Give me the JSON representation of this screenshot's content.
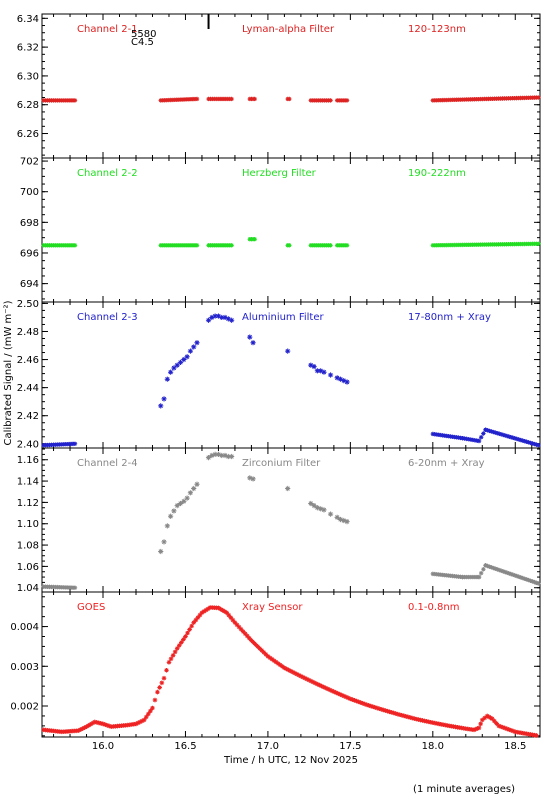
{
  "figure": {
    "xlabel": "Time / h UTC, 12 Nov 2025",
    "ylabel": "Calibrated Signal / (mW m⁻²)",
    "footnote": "(1 minute averages)",
    "flare_marker": {
      "time": 16.64,
      "class": "C4.5",
      "id": "5580"
    }
  },
  "chart_data": [
    {
      "type": "scatter",
      "channel": "Channel 2-1",
      "filter": "Lyman-alpha Filter",
      "band": "120-123nm",
      "color": "#dd2222",
      "ylim": [
        6.243,
        6.343
      ],
      "yticks": [
        6.26,
        6.28,
        6.3,
        6.32,
        6.34
      ],
      "ydecimals": 2,
      "xlim": [
        15.63,
        18.65
      ],
      "segments": [
        {
          "x0": 15.64,
          "x1": 15.83,
          "y0": 6.283,
          "y1": 6.283
        },
        {
          "x0": 16.35,
          "x1": 16.57,
          "y0": 6.283,
          "y1": 6.284
        },
        {
          "x0": 16.64,
          "x1": 16.78,
          "y0": 6.284,
          "y1": 6.284
        },
        {
          "x0": 16.89,
          "x1": 16.92,
          "y0": 6.284,
          "y1": 6.284
        },
        {
          "x0": 17.12,
          "x1": 17.13,
          "y0": 6.284,
          "y1": 6.284
        },
        {
          "x0": 17.26,
          "x1": 17.38,
          "y0": 6.283,
          "y1": 6.283
        },
        {
          "x0": 17.42,
          "x1": 17.48,
          "y0": 6.283,
          "y1": 6.283
        },
        {
          "x0": 18.0,
          "x1": 18.64,
          "y0": 6.283,
          "y1": 6.285
        }
      ],
      "points": []
    },
    {
      "type": "scatter",
      "channel": "Channel 2-2",
      "filter": "Herzberg Filter",
      "band": "190-222nm",
      "color": "#22dd22",
      "ylim": [
        692.8,
        702.2
      ],
      "yticks": [
        694,
        696,
        698,
        700,
        702
      ],
      "ydecimals": 0,
      "xlim": [
        15.63,
        18.65
      ],
      "segments": [
        {
          "x0": 15.64,
          "x1": 15.83,
          "y0": 696.5,
          "y1": 696.5
        },
        {
          "x0": 16.35,
          "x1": 16.57,
          "y0": 696.5,
          "y1": 696.5
        },
        {
          "x0": 16.64,
          "x1": 16.78,
          "y0": 696.5,
          "y1": 696.5
        },
        {
          "x0": 16.89,
          "x1": 16.92,
          "y0": 696.9,
          "y1": 696.9
        },
        {
          "x0": 17.12,
          "x1": 17.13,
          "y0": 696.5,
          "y1": 696.5
        },
        {
          "x0": 17.26,
          "x1": 17.38,
          "y0": 696.5,
          "y1": 696.5
        },
        {
          "x0": 17.42,
          "x1": 17.48,
          "y0": 696.5,
          "y1": 696.5
        },
        {
          "x0": 18.0,
          "x1": 18.64,
          "y0": 696.5,
          "y1": 696.6
        }
      ],
      "points": []
    },
    {
      "type": "scatter",
      "channel": "Channel 2-3",
      "filter": "Aluminium Filter",
      "band": "17-80nm + Xray",
      "color": "#2222cc",
      "ylim": [
        2.397,
        2.501
      ],
      "yticks": [
        2.4,
        2.42,
        2.44,
        2.46,
        2.48,
        2.5
      ],
      "ydecimals": 2,
      "xlim": [
        15.63,
        18.65
      ],
      "segments": [
        {
          "x0": 15.64,
          "x1": 15.83,
          "y0": 2.399,
          "y1": 2.4
        },
        {
          "x0": 18.0,
          "x1": 18.18,
          "y0": 2.407,
          "y1": 2.404
        },
        {
          "x0": 18.18,
          "x1": 18.28,
          "y0": 2.404,
          "y1": 2.402
        },
        {
          "x0": 18.28,
          "x1": 18.32,
          "y0": 2.402,
          "y1": 2.41
        },
        {
          "x0": 18.32,
          "x1": 18.64,
          "y0": 2.41,
          "y1": 2.399
        }
      ],
      "points": [
        [
          16.35,
          2.427
        ],
        [
          16.37,
          2.432
        ],
        [
          16.39,
          2.446
        ],
        [
          16.41,
          2.451
        ],
        [
          16.43,
          2.454
        ],
        [
          16.45,
          2.456
        ],
        [
          16.47,
          2.458
        ],
        [
          16.49,
          2.46
        ],
        [
          16.51,
          2.462
        ],
        [
          16.53,
          2.466
        ],
        [
          16.55,
          2.469
        ],
        [
          16.57,
          2.472
        ],
        [
          16.64,
          2.488
        ],
        [
          16.66,
          2.49
        ],
        [
          16.68,
          2.491
        ],
        [
          16.7,
          2.491
        ],
        [
          16.72,
          2.49
        ],
        [
          16.74,
          2.49
        ],
        [
          16.76,
          2.489
        ],
        [
          16.78,
          2.488
        ],
        [
          16.89,
          2.476
        ],
        [
          16.91,
          2.472
        ],
        [
          17.12,
          2.466
        ],
        [
          17.26,
          2.456
        ],
        [
          17.28,
          2.455
        ],
        [
          17.3,
          2.452
        ],
        [
          17.32,
          2.452
        ],
        [
          17.34,
          2.451
        ],
        [
          17.38,
          2.449
        ],
        [
          17.42,
          2.447
        ],
        [
          17.44,
          2.446
        ],
        [
          17.46,
          2.445
        ],
        [
          17.48,
          2.444
        ]
      ]
    },
    {
      "type": "scatter",
      "channel": "Channel 2-4",
      "filter": "Zirconium Filter",
      "band": "6-20nm + Xray",
      "color": "#888888",
      "ylim": [
        1.036,
        1.171
      ],
      "yticks": [
        1.04,
        1.06,
        1.08,
        1.1,
        1.12,
        1.14,
        1.16
      ],
      "ydecimals": 2,
      "xlim": [
        15.63,
        18.65
      ],
      "segments": [
        {
          "x0": 15.64,
          "x1": 15.83,
          "y0": 1.041,
          "y1": 1.04
        },
        {
          "x0": 18.0,
          "x1": 18.18,
          "y0": 1.053,
          "y1": 1.05
        },
        {
          "x0": 18.18,
          "x1": 18.28,
          "y0": 1.05,
          "y1": 1.05
        },
        {
          "x0": 18.28,
          "x1": 18.32,
          "y0": 1.05,
          "y1": 1.061
        },
        {
          "x0": 18.32,
          "x1": 18.64,
          "y0": 1.061,
          "y1": 1.044
        }
      ],
      "points": [
        [
          16.35,
          1.074
        ],
        [
          16.37,
          1.083
        ],
        [
          16.39,
          1.098
        ],
        [
          16.41,
          1.107
        ],
        [
          16.43,
          1.112
        ],
        [
          16.45,
          1.117
        ],
        [
          16.47,
          1.119
        ],
        [
          16.49,
          1.121
        ],
        [
          16.51,
          1.124
        ],
        [
          16.53,
          1.129
        ],
        [
          16.55,
          1.133
        ],
        [
          16.57,
          1.137
        ],
        [
          16.64,
          1.162
        ],
        [
          16.66,
          1.164
        ],
        [
          16.68,
          1.165
        ],
        [
          16.7,
          1.165
        ],
        [
          16.72,
          1.164
        ],
        [
          16.74,
          1.164
        ],
        [
          16.76,
          1.163
        ],
        [
          16.78,
          1.163
        ],
        [
          16.89,
          1.143
        ],
        [
          16.91,
          1.142
        ],
        [
          17.12,
          1.133
        ],
        [
          17.26,
          1.119
        ],
        [
          17.28,
          1.117
        ],
        [
          17.3,
          1.115
        ],
        [
          17.32,
          1.114
        ],
        [
          17.34,
          1.113
        ],
        [
          17.38,
          1.109
        ],
        [
          17.42,
          1.106
        ],
        [
          17.44,
          1.104
        ],
        [
          17.46,
          1.103
        ],
        [
          17.48,
          1.102
        ]
      ]
    },
    {
      "type": "scatter",
      "channel": "GOES",
      "filter": "Xray Sensor",
      "band": "0.1-0.8nm",
      "color": "#ee2222",
      "ylim": [
        0.00122,
        0.00487
      ],
      "yticks": [
        0.002,
        0.003,
        0.004
      ],
      "ydecimals": 3,
      "xlim": [
        15.63,
        18.65
      ],
      "curve": [
        [
          15.64,
          0.0014
        ],
        [
          15.75,
          0.00135
        ],
        [
          15.85,
          0.00138
        ],
        [
          15.9,
          0.00148
        ],
        [
          15.95,
          0.0016
        ],
        [
          16.0,
          0.00155
        ],
        [
          16.05,
          0.00148
        ],
        [
          16.1,
          0.0015
        ],
        [
          16.15,
          0.00152
        ],
        [
          16.2,
          0.00155
        ],
        [
          16.25,
          0.00165
        ],
        [
          16.3,
          0.00195
        ],
        [
          16.33,
          0.00235
        ],
        [
          16.37,
          0.0027
        ],
        [
          16.4,
          0.0031
        ],
        [
          16.45,
          0.00345
        ],
        [
          16.5,
          0.00375
        ],
        [
          16.55,
          0.0041
        ],
        [
          16.6,
          0.00435
        ],
        [
          16.65,
          0.00448
        ],
        [
          16.7,
          0.00447
        ],
        [
          16.75,
          0.00435
        ],
        [
          16.8,
          0.0041
        ],
        [
          16.9,
          0.00365
        ],
        [
          17.0,
          0.00325
        ],
        [
          17.1,
          0.00296
        ],
        [
          17.2,
          0.00275
        ],
        [
          17.3,
          0.00255
        ],
        [
          17.4,
          0.00236
        ],
        [
          17.5,
          0.00218
        ],
        [
          17.6,
          0.00203
        ],
        [
          17.7,
          0.0019
        ],
        [
          17.8,
          0.00178
        ],
        [
          17.9,
          0.00167
        ],
        [
          18.0,
          0.00158
        ],
        [
          18.1,
          0.0015
        ],
        [
          18.2,
          0.00143
        ],
        [
          18.25,
          0.0014
        ],
        [
          18.28,
          0.00145
        ],
        [
          18.3,
          0.00165
        ],
        [
          18.33,
          0.00175
        ],
        [
          18.36,
          0.00168
        ],
        [
          18.4,
          0.0015
        ],
        [
          18.5,
          0.00135
        ],
        [
          18.64,
          0.00125
        ]
      ]
    }
  ],
  "xaxis": {
    "xlim": [
      15.63,
      18.65
    ],
    "ticks": [
      16.0,
      16.5,
      17.0,
      17.5,
      18.0,
      18.5
    ]
  }
}
